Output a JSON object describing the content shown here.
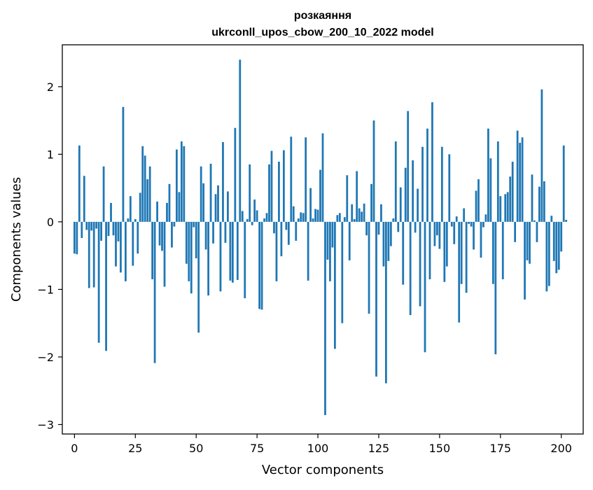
{
  "chart_data": {
    "type": "bar",
    "title_line1": "розкаяння",
    "title_line2": "ukrconll_upos_cbow_200_10_2022 model",
    "xlabel": "Vector components",
    "ylabel": "Components values",
    "xlim": [
      -5,
      209
    ],
    "ylim": [
      -3.14,
      2.62
    ],
    "x_ticks": [
      0,
      25,
      50,
      75,
      100,
      125,
      150,
      175,
      200
    ],
    "x_tick_labels": [
      "0",
      "25",
      "50",
      "75",
      "100",
      "125",
      "150",
      "175",
      "200"
    ],
    "y_ticks": [
      2,
      1,
      0,
      -1,
      -2,
      -3
    ],
    "y_tick_labels": [
      "2",
      "1",
      "0",
      "−1",
      "−2",
      "−3"
    ],
    "bar_color": "#1f77b4",
    "grid": false,
    "values": [
      -0.47,
      -0.48,
      1.13,
      -0.24,
      0.68,
      -0.12,
      -0.98,
      -0.13,
      -0.97,
      -0.1,
      -1.79,
      -0.28,
      0.82,
      -1.91,
      -0.21,
      0.28,
      -0.2,
      -0.66,
      -0.29,
      -0.75,
      1.7,
      -0.88,
      0.05,
      0.38,
      -0.65,
      0.04,
      -0.47,
      0.43,
      1.12,
      0.98,
      0.63,
      0.82,
      -0.85,
      -2.09,
      0.3,
      -0.35,
      -0.43,
      -0.96,
      0.28,
      0.56,
      -0.38,
      -0.07,
      1.07,
      0.44,
      1.19,
      1.12,
      -0.62,
      -0.88,
      -1.06,
      -0.08,
      -0.54,
      -1.64,
      0.82,
      0.57,
      -0.41,
      -1.09,
      0.86,
      -0.32,
      0.41,
      0.54,
      -1.03,
      1.18,
      -0.31,
      0.45,
      -0.87,
      -0.9,
      1.39,
      -0.86,
      2.4,
      0.16,
      -1.13,
      0.04,
      0.85,
      -0.05,
      0.33,
      0.17,
      -1.29,
      -1.3,
      0.05,
      0.13,
      0.85,
      1.05,
      -0.17,
      -0.88,
      0.89,
      -0.51,
      1.06,
      -0.12,
      -0.34,
      1.26,
      0.23,
      -0.28,
      0.05,
      0.14,
      0.13,
      1.25,
      -0.87,
      0.5,
      0.05,
      0.19,
      0.18,
      0.77,
      1.31,
      -2.86,
      -0.56,
      -0.88,
      -0.38,
      -1.88,
      0.1,
      0.13,
      -1.5,
      0.07,
      0.69,
      -0.57,
      0.26,
      0.04,
      0.75,
      0.2,
      0.15,
      0.27,
      -0.2,
      -1.36,
      0.56,
      1.5,
      -2.29,
      -0.19,
      0.26,
      -0.66,
      -2.39,
      -0.58,
      -0.36,
      0.05,
      1.19,
      -0.15,
      0.51,
      -0.93,
      0.8,
      1.64,
      -1.38,
      0.91,
      -0.16,
      0.49,
      -1.25,
      1.11,
      -1.93,
      1.38,
      -0.85,
      1.77,
      -0.36,
      -0.2,
      -0.4,
      1.11,
      -0.89,
      -0.66,
      1.0,
      -0.07,
      -0.33,
      0.08,
      -1.49,
      -0.92,
      0.2,
      -1.05,
      -0.03,
      -0.07,
      -0.41,
      0.46,
      0.63,
      -0.53,
      -0.08,
      0.11,
      1.38,
      0.94,
      -0.92,
      -1.96,
      1.19,
      0.38,
      -0.85,
      0.41,
      0.44,
      0.67,
      0.89,
      -0.3,
      1.35,
      1.17,
      1.25,
      -1.15,
      -0.57,
      -0.62,
      0.7,
      0.02,
      -0.3,
      0.52,
      1.96,
      0.6,
      -1.03,
      -0.95,
      0.09,
      -0.58,
      -0.76,
      -0.71,
      -0.44,
      1.13,
      0.03
    ]
  }
}
